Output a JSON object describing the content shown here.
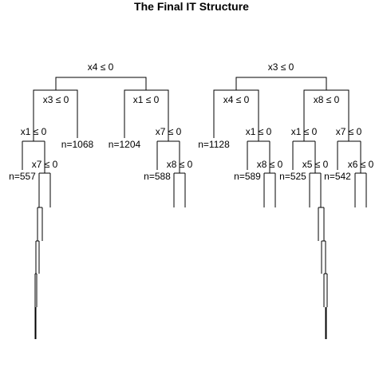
{
  "title": "The Final IT Structure",
  "splits": {
    "left_root": "x4 ≤ 0",
    "right_root": "x3 ≤ 0",
    "l_x3": "x3 ≤ 0",
    "l_x1": "x1 ≤ 0",
    "l_x1_deep": "x1 ≤ 0",
    "l_x7": "x7 ≤ 0",
    "l_x7_deep": "x7 ≤ 0",
    "l_x8": "x8 ≤ 0",
    "r_x4": "x4 ≤ 0",
    "r_x8": "x8 ≤ 0",
    "r_x1_a": "x1 ≤ 0",
    "r_x1_b": "x1 ≤ 0",
    "r_x7": "x7 ≤ 0",
    "r_x8_deep": "x8 ≤ 0",
    "r_x5": "x5 ≤ 0",
    "r_x6": "x6 ≤ 0"
  },
  "leaves": {
    "n557": "n=557",
    "n1068": "n=1068",
    "n1204": "n=1204",
    "n588": "n=588",
    "n1128": "n=1128",
    "n589": "n=589",
    "n525": "n=525",
    "n542": "n=542"
  }
}
